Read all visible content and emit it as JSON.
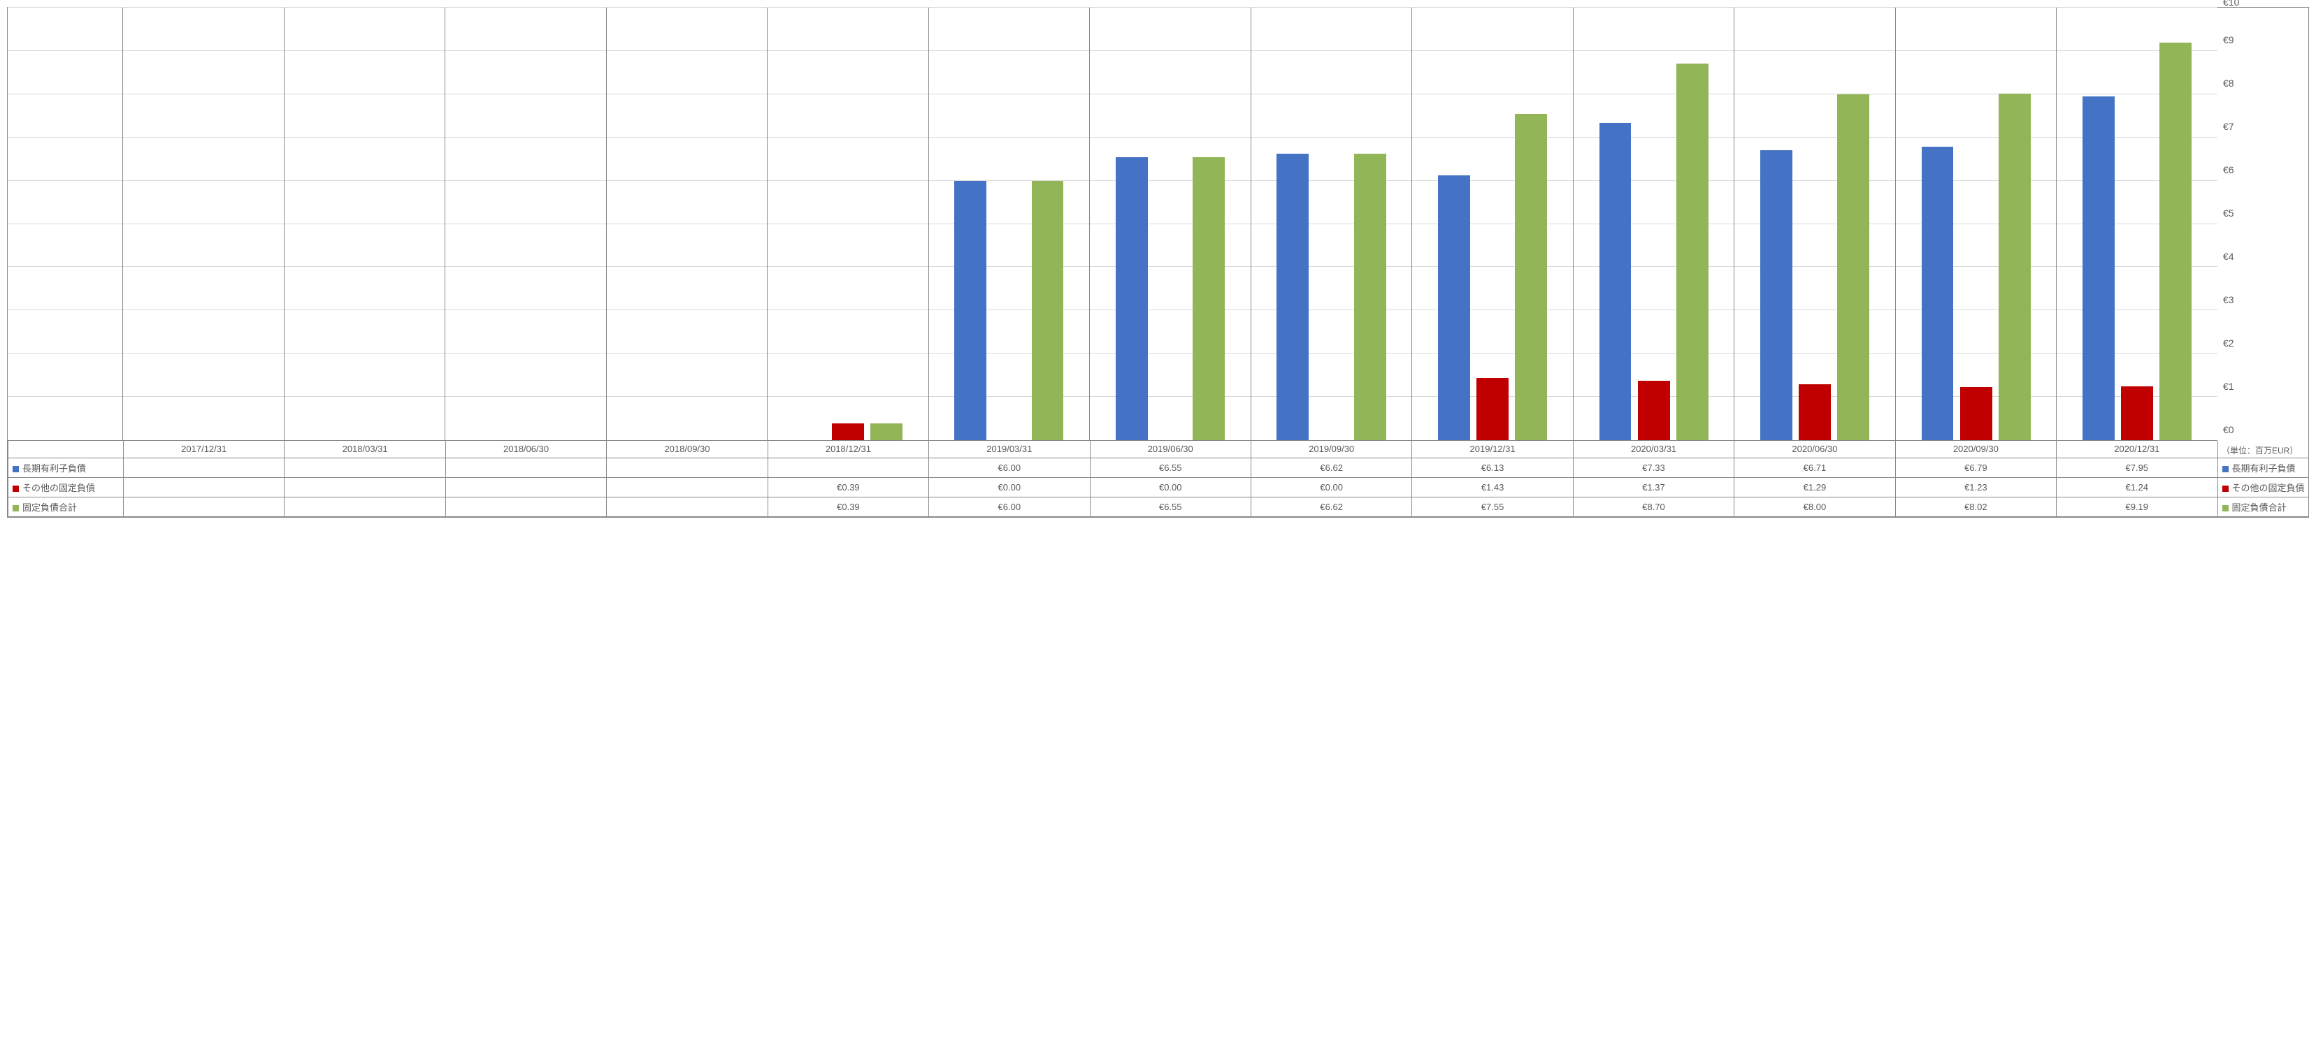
{
  "chart": {
    "type": "bar",
    "y_axis": {
      "min": 0,
      "max": 10,
      "step": 1,
      "currency_prefix": "€",
      "unit_label": "（単位：百万EUR）"
    },
    "grid_color": "#d9d9d9",
    "border_color": "#888888",
    "background_color": "#ffffff",
    "text_color": "#595959",
    "categories": [
      "2017/12/31",
      "2018/03/31",
      "2018/06/30",
      "2018/09/30",
      "2018/12/31",
      "2019/03/31",
      "2019/06/30",
      "2019/09/30",
      "2019/12/31",
      "2020/03/31",
      "2020/06/30",
      "2020/09/30",
      "2020/12/31"
    ],
    "series": [
      {
        "name": "長期有利子負債",
        "color": "#4472c4",
        "values": [
          null,
          null,
          null,
          null,
          null,
          6.0,
          6.55,
          6.62,
          6.13,
          7.33,
          6.71,
          6.79,
          7.95
        ]
      },
      {
        "name": "その他の固定負債",
        "color": "#c00000",
        "values": [
          null,
          null,
          null,
          null,
          0.39,
          0.0,
          0.0,
          0.0,
          1.43,
          1.37,
          1.29,
          1.23,
          1.24
        ]
      },
      {
        "name": "固定負債合計",
        "color": "#92b558",
        "values": [
          null,
          null,
          null,
          null,
          0.39,
          6.0,
          6.55,
          6.62,
          7.55,
          8.7,
          8.0,
          8.02,
          9.19
        ]
      }
    ]
  }
}
